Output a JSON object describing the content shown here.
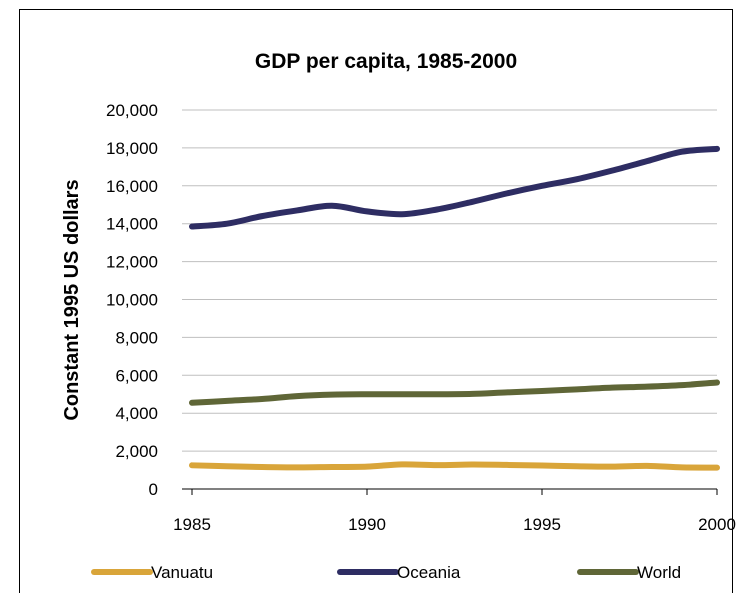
{
  "chart_data": {
    "type": "line",
    "title": "GDP per capita, 1985-2000",
    "xlabel": "",
    "ylabel": "Constant 1995 US dollars",
    "xlim": [
      1985,
      2000
    ],
    "ylim": [
      0,
      20000
    ],
    "x_ticks": [
      "1985",
      "1990",
      "1995",
      "2000"
    ],
    "y_ticks": [
      "0",
      "2,000",
      "4,000",
      "6,000",
      "8,000",
      "10,000",
      "12,000",
      "14,000",
      "16,000",
      "18,000",
      "20,000"
    ],
    "grid": "horizontal",
    "legend": "bottom",
    "x": [
      1985,
      1986,
      1987,
      1988,
      1989,
      1990,
      1991,
      1992,
      1993,
      1994,
      1995,
      1996,
      1997,
      1998,
      1999,
      2000
    ],
    "series": [
      {
        "name": "Vanuatu",
        "color": "#D9A53A",
        "values": [
          1250,
          1200,
          1160,
          1140,
          1160,
          1180,
          1300,
          1260,
          1290,
          1270,
          1240,
          1200,
          1180,
          1220,
          1140,
          1130
        ]
      },
      {
        "name": "Oceania",
        "color": "#2E2D63",
        "values": [
          13850,
          14000,
          14400,
          14700,
          14950,
          14650,
          14500,
          14750,
          15150,
          15600,
          16000,
          16350,
          16800,
          17300,
          17800,
          17950
        ]
      },
      {
        "name": "World",
        "color": "#5F6637",
        "values": [
          4550,
          4650,
          4750,
          4900,
          4980,
          5000,
          5000,
          5000,
          5020,
          5100,
          5170,
          5260,
          5350,
          5400,
          5480,
          5620
        ]
      }
    ]
  }
}
